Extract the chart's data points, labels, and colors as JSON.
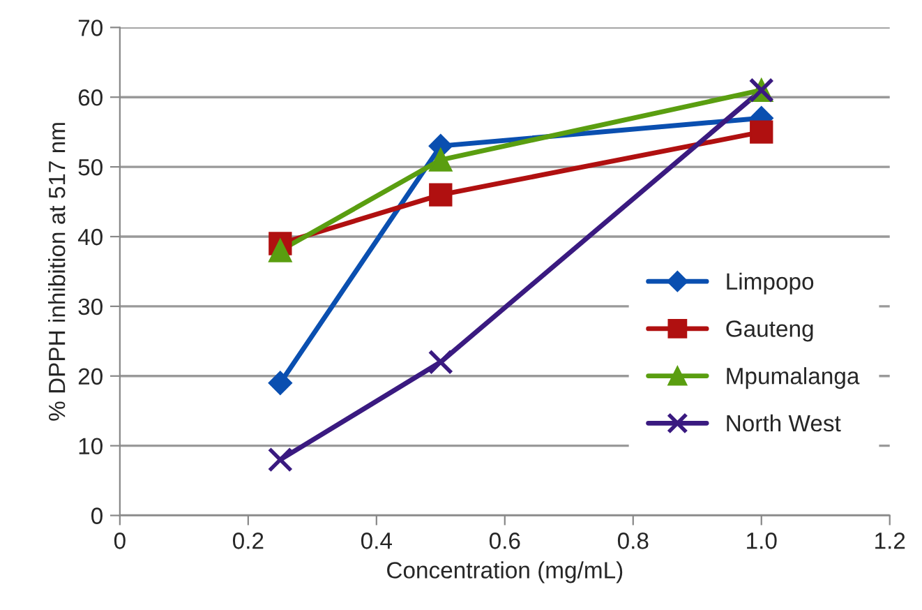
{
  "chart_data": {
    "type": "line",
    "xlabel": "Concentration (mg/mL)",
    "ylabel": "% DPPH inhibition at 517 nm",
    "x": [
      0.25,
      0.5,
      1.0
    ],
    "series": [
      {
        "name": "Limpopo",
        "color": "#0a4fb0",
        "marker": "diamond",
        "values": [
          19,
          53,
          57
        ]
      },
      {
        "name": "Gauteng",
        "color": "#b01010",
        "marker": "square",
        "values": [
          39,
          46,
          55
        ]
      },
      {
        "name": "Mpumalanga",
        "color": "#5a9e10",
        "marker": "triangle",
        "values": [
          38,
          51,
          61
        ]
      },
      {
        "name": "North West",
        "color": "#3a1a80",
        "marker": "cross",
        "values": [
          8,
          22,
          61
        ]
      }
    ],
    "xlim": [
      0,
      1.2
    ],
    "xticks": [
      0,
      0.2,
      0.4,
      0.6,
      0.8,
      {
        "value": 1.0,
        "label": "1.0"
      },
      1.2
    ],
    "ylim": [
      0,
      70
    ],
    "yticks": [
      0,
      10,
      20,
      30,
      40,
      50,
      60,
      70
    ],
    "grid": "y",
    "legend": "right",
    "line_style": "solid"
  }
}
